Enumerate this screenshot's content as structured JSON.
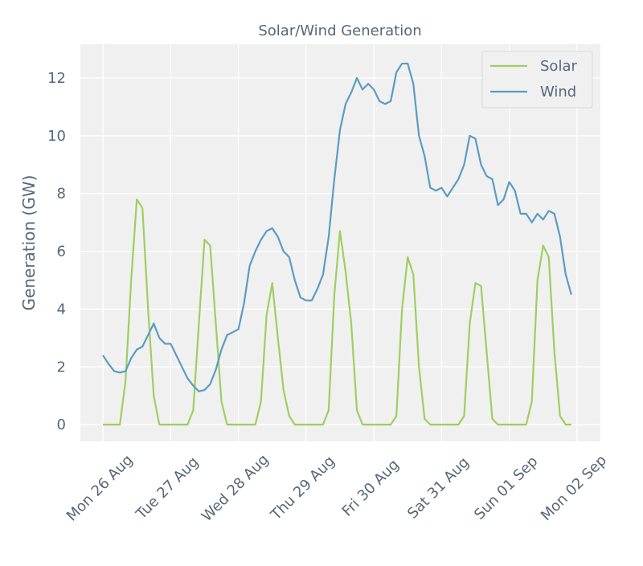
{
  "chart_data": {
    "type": "line",
    "title": "Solar/Wind Generation",
    "y_label": "Generation (GW)",
    "x": [
      0,
      2,
      4,
      6,
      8,
      10,
      12,
      14,
      16,
      18,
      20,
      22,
      24,
      26,
      28,
      30,
      32,
      34,
      36,
      38,
      40,
      42,
      44,
      46,
      48,
      50,
      52,
      54,
      56,
      58,
      60,
      62,
      64,
      66,
      68,
      70,
      72,
      74,
      76,
      78,
      80,
      82,
      84,
      86,
      88,
      90,
      92,
      94,
      96,
      98,
      100,
      102,
      104,
      106,
      108,
      110,
      112,
      114,
      116,
      118,
      120,
      122,
      124,
      126,
      128,
      130,
      132,
      134,
      136,
      138,
      140,
      142,
      144,
      146,
      148,
      150,
      152,
      154,
      156,
      158,
      160,
      162,
      164,
      166
    ],
    "series": [
      {
        "name": "Solar",
        "color": "#9dcf5f",
        "values": [
          0,
          0,
          0,
          0,
          1.5,
          5,
          7.8,
          7.5,
          4,
          1,
          0,
          0,
          0,
          0,
          0,
          0,
          0.5,
          3.5,
          6.4,
          6.2,
          3.5,
          0.8,
          0,
          0,
          0,
          0,
          0,
          0,
          0.8,
          3.8,
          4.9,
          3.0,
          1.2,
          0.3,
          0,
          0,
          0,
          0,
          0,
          0,
          0.5,
          4.5,
          6.7,
          5.3,
          3.5,
          0.5,
          0,
          0,
          0,
          0,
          0,
          0,
          0.3,
          4.0,
          5.8,
          5.2,
          2.0,
          0.2,
          0,
          0,
          0,
          0,
          0,
          0,
          0.3,
          3.5,
          4.9,
          4.8,
          2.5,
          0.2,
          0,
          0,
          0,
          0,
          0,
          0,
          0.8,
          5.0,
          6.2,
          5.8,
          2.5,
          0.3,
          0,
          0
        ]
      },
      {
        "name": "Wind",
        "color": "#5a9cc2",
        "values": [
          2.4,
          2.1,
          1.85,
          1.8,
          1.85,
          2.3,
          2.6,
          2.7,
          3.1,
          3.5,
          3.0,
          2.8,
          2.8,
          2.4,
          2.0,
          1.6,
          1.35,
          1.15,
          1.2,
          1.4,
          1.9,
          2.6,
          3.1,
          3.2,
          3.3,
          4.2,
          5.5,
          6.0,
          6.4,
          6.7,
          6.8,
          6.5,
          6.0,
          5.8,
          5.0,
          4.4,
          4.3,
          4.3,
          4.7,
          5.2,
          6.5,
          8.5,
          10.2,
          11.1,
          11.5,
          12.0,
          11.6,
          11.8,
          11.6,
          11.2,
          11.1,
          11.2,
          12.2,
          12.5,
          12.5,
          11.8,
          10.0,
          9.3,
          8.2,
          8.1,
          8.2,
          7.9,
          8.2,
          8.5,
          9.0,
          10.0,
          9.9,
          9.0,
          8.6,
          8.5,
          7.6,
          7.8,
          8.4,
          8.1,
          7.3,
          7.3,
          7.0,
          7.3,
          7.1,
          7.4,
          7.3,
          6.5,
          5.2,
          4.5
        ]
      }
    ],
    "xlim": [
      -8,
      176.3
    ],
    "xticks": [
      {
        "value": 0,
        "label": "Mon 26 Aug"
      },
      {
        "value": 24,
        "label": "Tue 27 Aug"
      },
      {
        "value": 48,
        "label": "Wed 28 Aug"
      },
      {
        "value": 72,
        "label": "Thu 29 Aug"
      },
      {
        "value": 96,
        "label": "Fri 30 Aug"
      },
      {
        "value": 120,
        "label": "Sat 31 Aug"
      },
      {
        "value": 144,
        "label": "Sun 01 Sep"
      },
      {
        "value": 168,
        "label": "Mon 02 Sep"
      }
    ],
    "ylim": [
      -0.58,
      13.17
    ],
    "yticks": [
      0,
      2,
      4,
      6,
      8,
      10,
      12
    ],
    "grid": true,
    "legend": "upper right"
  }
}
